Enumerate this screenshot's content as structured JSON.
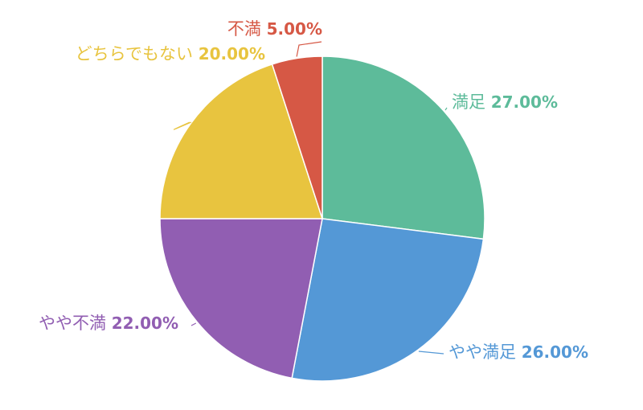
{
  "chart_data": {
    "type": "pie",
    "title": "",
    "legend": "none",
    "start_angle": "top",
    "direction": "clockwise",
    "categories": [
      "満足",
      "やや満足",
      "やや不満",
      "どちらでもない",
      "不満"
    ],
    "values": [
      27.0,
      26.0,
      22.0,
      20.0,
      5.0
    ],
    "value_labels": [
      "27.00%",
      "26.00%",
      "22.00%",
      "20.00%",
      "5.00%"
    ],
    "colors": [
      "#5DBB9A",
      "#5498D6",
      "#915EB2",
      "#E8C43F",
      "#D65845"
    ]
  }
}
